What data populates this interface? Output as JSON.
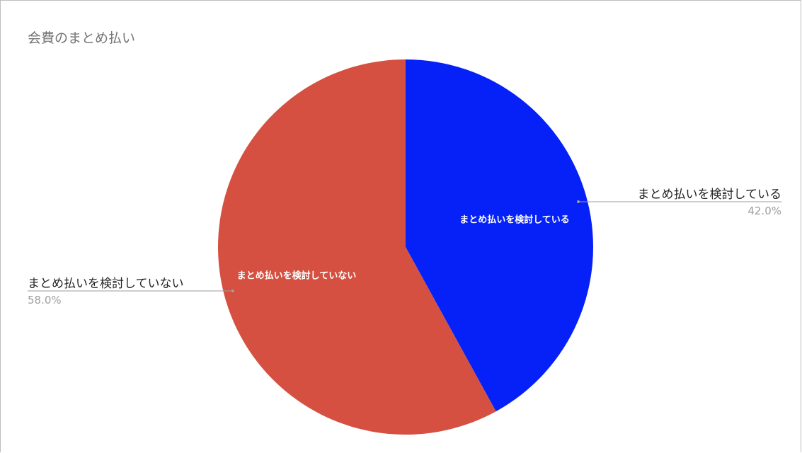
{
  "chart_data": {
    "type": "pie",
    "title": "会費のまとめ払い",
    "slices": [
      {
        "label": "まとめ払いを検討している",
        "value": 42.0,
        "percent_label": "42.0%",
        "color": "#0521f7"
      },
      {
        "label": "まとめ払いを検討していない",
        "value": 58.0,
        "percent_label": "58.0%",
        "color": "#d55040"
      }
    ],
    "start_angle": "12 o'clock",
    "direction": "clockwise",
    "legend": "callouts beside slices",
    "colors": {
      "leader_line": "#9e9e9e",
      "title": "#757575",
      "frame": "#bdbdbd"
    }
  }
}
